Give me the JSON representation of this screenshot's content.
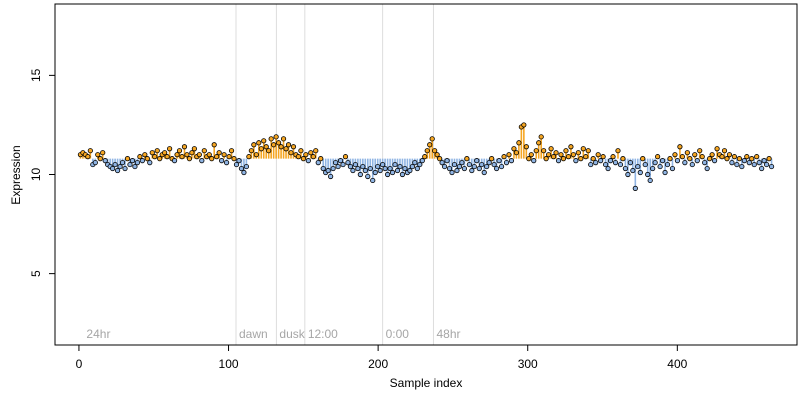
{
  "colors": {
    "above": "#f5a623",
    "below": "#8fb4e3",
    "vline": "#dddddd",
    "annotation": "#a6a6a6",
    "axis": "#000000"
  },
  "chart_data": {
    "type": "scatter",
    "xlabel": "Sample index",
    "ylabel": "Expression",
    "xlim": [
      -16,
      480
    ],
    "ylim": [
      1.4,
      18.6
    ],
    "x_ticks": [
      0,
      100,
      200,
      300,
      400
    ],
    "x_tick_labels": [
      "0",
      "100",
      "200",
      "300",
      "400"
    ],
    "y_ticks": [
      5,
      10,
      15
    ],
    "y_tick_labels": [
      "5",
      "10",
      "15"
    ],
    "baseline": 10.8,
    "grid": false,
    "annotations": [
      {
        "x": 3,
        "label": "24hr",
        "line": false
      },
      {
        "x": 105,
        "label": "dawn",
        "line": true
      },
      {
        "x": 132,
        "label": "dusk",
        "line": true
      },
      {
        "x": 151,
        "label": "12:00",
        "line": true
      },
      {
        "x": 203,
        "label": "0:00",
        "line": true
      },
      {
        "x": 237,
        "label": "48hr",
        "line": true
      }
    ],
    "x_range": [
      1,
      463
    ],
    "y": [
      11.0,
      11.1,
      11.0,
      10.9,
      11.2,
      10.5,
      10.6,
      11.0,
      10.8,
      11.1,
      10.7,
      10.5,
      10.4,
      10.3,
      10.5,
      10.2,
      10.4,
      10.6,
      10.3,
      10.8,
      10.5,
      10.7,
      10.4,
      10.6,
      10.9,
      10.7,
      11.0,
      10.8,
      10.6,
      11.1,
      10.9,
      11.2,
      10.8,
      11.0,
      11.1,
      10.9,
      11.3,
      10.8,
      10.7,
      11.0,
      11.2,
      10.9,
      11.4,
      11.0,
      10.8,
      11.1,
      11.3,
      10.9,
      11.0,
      10.7,
      11.2,
      10.9,
      11.0,
      10.8,
      11.5,
      10.9,
      11.1,
      10.7,
      11.0,
      10.6,
      10.9,
      11.2,
      10.8,
      10.5,
      10.7,
      10.3,
      10.1,
      10.4,
      10.9,
      11.2,
      11.5,
      11.0,
      11.6,
      11.3,
      11.7,
      11.4,
      11.2,
      11.8,
      11.5,
      11.9,
      11.6,
      11.4,
      11.8,
      11.3,
      11.5,
      11.1,
      11.4,
      11.0,
      10.9,
      11.2,
      10.8,
      11.0,
      10.7,
      11.1,
      10.9,
      11.2,
      10.6,
      10.8,
      10.3,
      10.1,
      10.2,
      9.9,
      10.3,
      10.6,
      10.4,
      10.7,
      10.5,
      10.9,
      10.6,
      10.4,
      10.2,
      10.5,
      10.3,
      10.0,
      10.4,
      10.2,
      9.9,
      10.3,
      9.7,
      10.1,
      10.4,
      10.2,
      10.5,
      10.3,
      10.0,
      10.3,
      10.1,
      10.5,
      10.2,
      10.4,
      10.0,
      10.3,
      10.1,
      10.2,
      10.4,
      10.6,
      10.3,
      10.5,
      10.7,
      10.9,
      11.2,
      11.5,
      11.8,
      11.2,
      11.0,
      10.8,
      10.6,
      10.4,
      10.7,
      10.3,
      10.1,
      10.5,
      10.2,
      10.4,
      10.6,
      10.3,
      10.8,
      10.5,
      10.2,
      10.4,
      10.7,
      10.3,
      10.5,
      10.1,
      10.4,
      10.6,
      10.8,
      10.5,
      10.3,
      10.7,
      10.4,
      10.9,
      10.6,
      11.0,
      10.7,
      11.3,
      11.1,
      11.6,
      12.4,
      12.5,
      11.4,
      10.8,
      11.0,
      10.7,
      11.2,
      11.6,
      11.9,
      11.2,
      10.8,
      11.0,
      11.3,
      10.9,
      11.1,
      10.7,
      11.0,
      10.8,
      11.2,
      10.9,
      11.4,
      11.0,
      10.7,
      11.1,
      10.8,
      11.3,
      10.9,
      11.2,
      10.5,
      10.8,
      10.6,
      11.0,
      10.7,
      10.9,
      10.5,
      10.3,
      10.7,
      10.9,
      10.6,
      11.2,
      10.5,
      10.8,
      10.3,
      10.0,
      10.6,
      10.2,
      9.3,
      10.4,
      10.1,
      10.8,
      10.5,
      10.0,
      9.7,
      10.3,
      10.6,
      10.9,
      10.4,
      10.7,
      10.1,
      10.5,
      10.8,
      10.3,
      11.0,
      10.7,
      11.4,
      10.9,
      10.6,
      11.1,
      10.8,
      10.5,
      11.0,
      10.7,
      11.2,
      10.9,
      10.6,
      10.3,
      10.8,
      11.0,
      10.7,
      11.3,
      11.0,
      10.9,
      11.2,
      10.8,
      11.0,
      10.6,
      10.9,
      10.5,
      10.8,
      10.4,
      10.7,
      10.9,
      10.6,
      10.8,
      10.5,
      10.9,
      10.6,
      10.3,
      10.7,
      10.5,
      10.8,
      10.4
    ]
  }
}
